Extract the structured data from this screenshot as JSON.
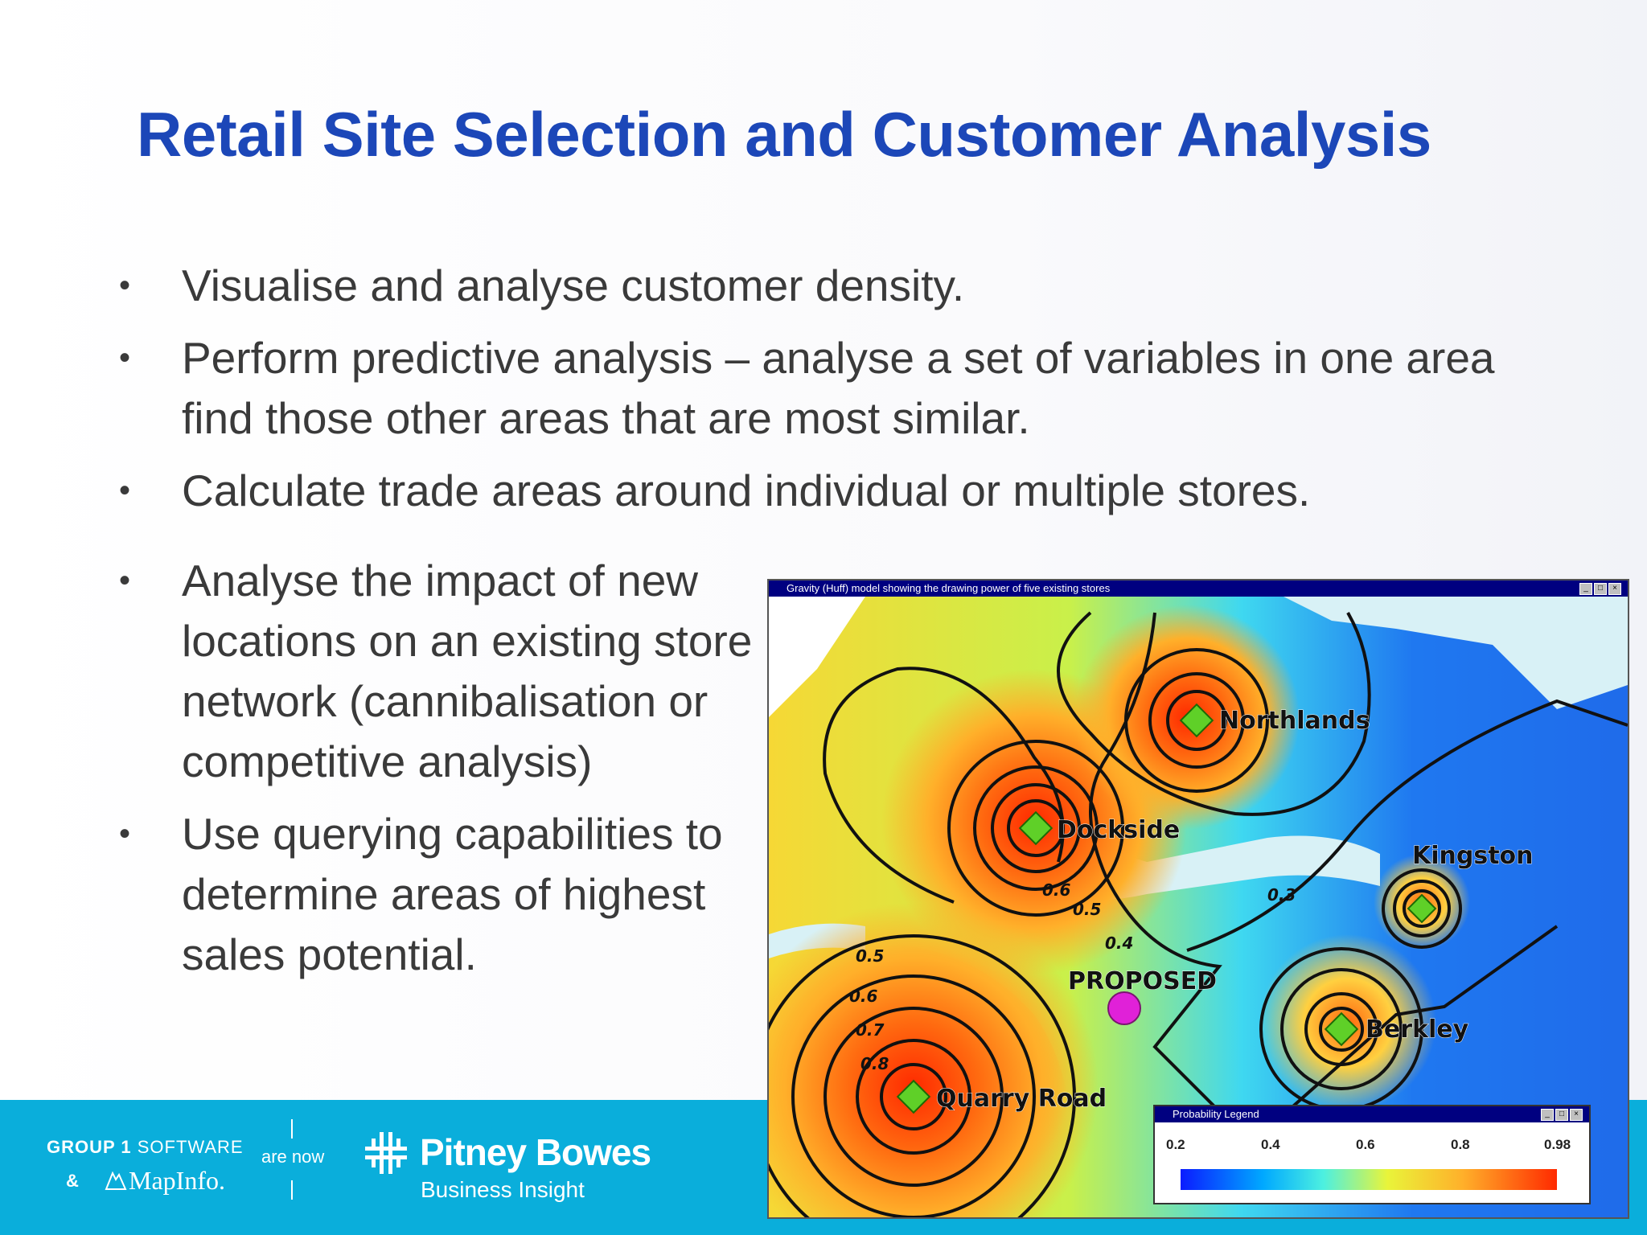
{
  "title": "Retail Site Selection and Customer Analysis",
  "bullets_top": [
    "Visualise and analyse customer density.",
    "Perform predictive analysis – analyse a set of variables in one area find those other areas that are most similar.",
    "Calculate trade areas around individual or multiple stores."
  ],
  "bullets_left": [
    "Analyse the impact of new locations on an existing store network (cannibalisation or competitive analysis)",
    "Use querying capabilities to determine areas of highest sales potential."
  ],
  "map": {
    "window_title": "Gravity (Huff) model showing the drawing power of five existing stores",
    "stores": [
      "Northlands",
      "Dockside",
      "Kingston",
      "Berkley",
      "Quarry Road"
    ],
    "proposed_label": "PROPOSED",
    "contour_labels": [
      "0.6",
      "0.5",
      "0.4",
      "0.3",
      "0.5",
      "0.6",
      "0.7",
      "0.8"
    ],
    "legend": {
      "title": "Probability Legend",
      "ticks": [
        "0.2",
        "0.4",
        "0.6",
        "0.8",
        "0.98"
      ]
    },
    "colors": {
      "store_marker": "#5fd028",
      "proposed_marker": "#e021d8"
    }
  },
  "footer": {
    "group1_bold": "GROUP 1",
    "group1_rest": " SOFTWARE",
    "amp": "&",
    "mapinfo": "MapInfo.",
    "are_now": "are now",
    "pitney_bowes": "Pitney Bowes",
    "business_insight": "Business Insight"
  }
}
